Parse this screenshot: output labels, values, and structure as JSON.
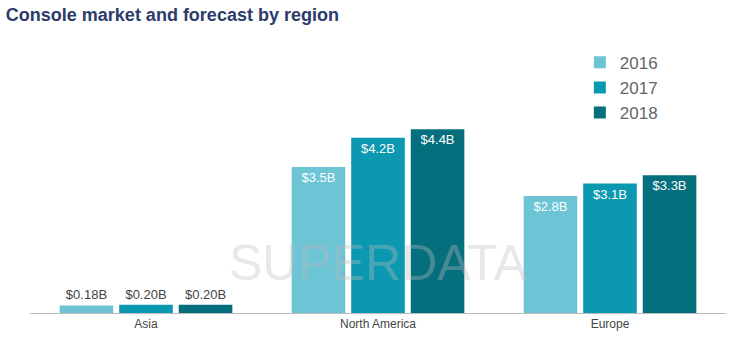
{
  "chart_data": {
    "type": "bar",
    "title": "Console market and forecast by region",
    "categories": [
      "Asia",
      "North America",
      "Europe"
    ],
    "series": [
      {
        "name": "2016",
        "color": "#6cc4d4",
        "values": [
          0.18,
          3.5,
          2.8
        ],
        "value_labels": [
          "$0.18B",
          "$3.5B",
          "$2.8B"
        ]
      },
      {
        "name": "2017",
        "color": "#0b98b0",
        "values": [
          0.2,
          4.2,
          3.1
        ],
        "value_labels": [
          "$0.20B",
          "$4.2B",
          "$3.1B"
        ]
      },
      {
        "name": "2018",
        "color": "#056f7e",
        "values": [
          0.2,
          4.4,
          3.3
        ],
        "value_labels": [
          "$0.20B",
          "$4.4B",
          "$3.3B"
        ]
      }
    ],
    "ylim": [
      0,
      6.3
    ],
    "data_labels": true,
    "tick_labels": "x",
    "grid": false,
    "legend": "top right",
    "annotations": [
      "SUPERDATA"
    ]
  }
}
